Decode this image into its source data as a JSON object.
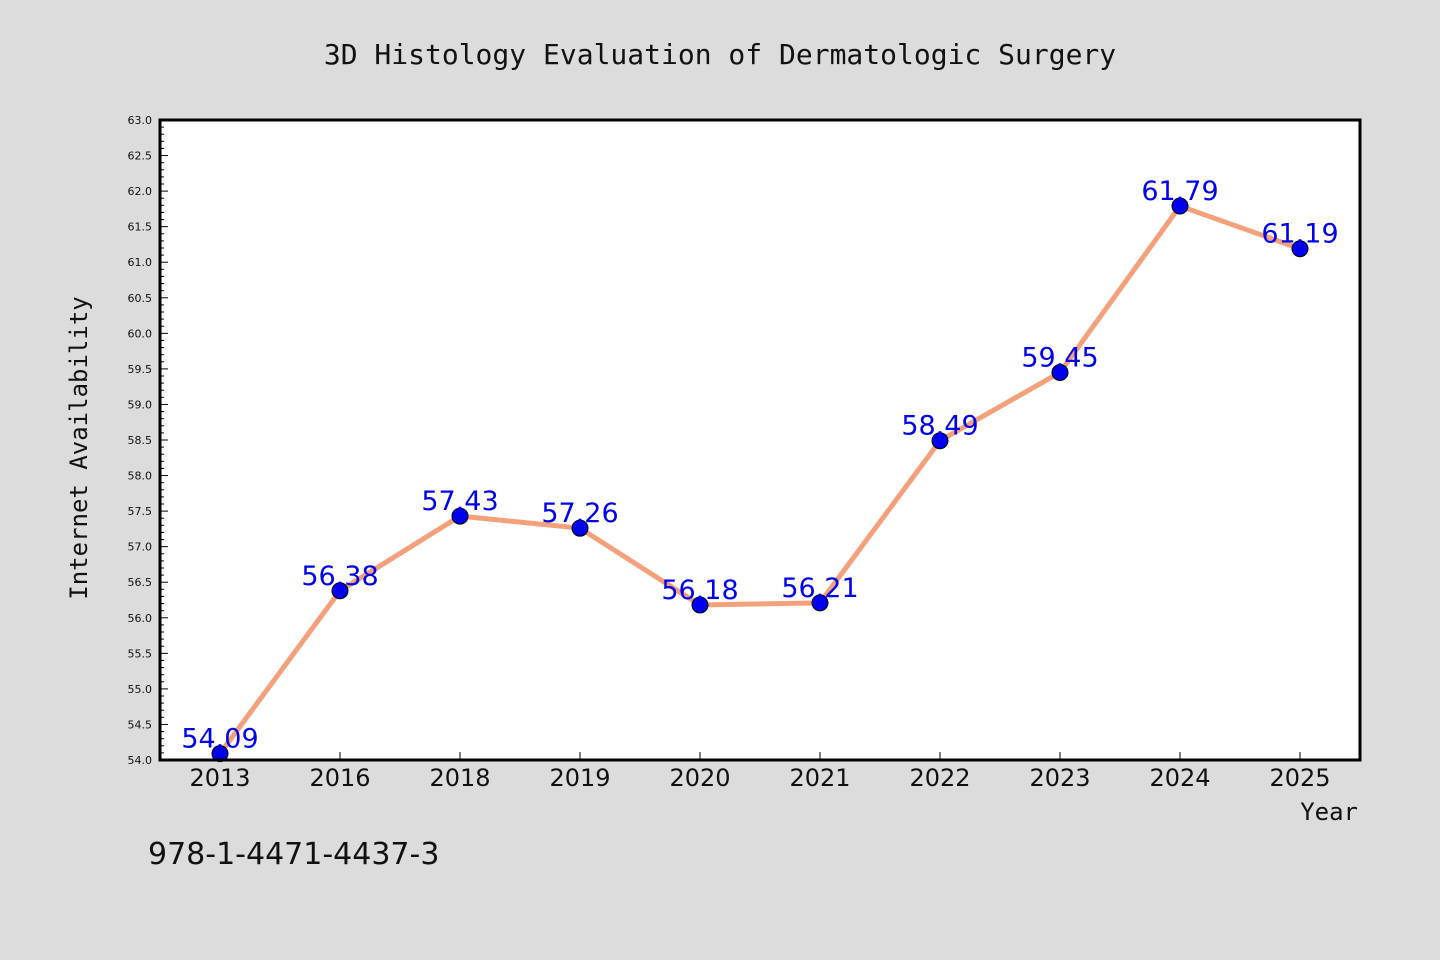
{
  "page": {
    "background": "#dcdcdc",
    "footer_text": "978-1-4471-4437-3"
  },
  "chart_data": {
    "type": "line",
    "title": "3D Histology Evaluation of Dermatologic Surgery",
    "xlabel": "Year",
    "ylabel": "Internet Availability",
    "categories": [
      "2013",
      "2016",
      "2018",
      "2019",
      "2020",
      "2021",
      "2022",
      "2023",
      "2024",
      "2025"
    ],
    "series": [
      {
        "values": [
          54.09,
          56.38,
          57.43,
          57.26,
          56.18,
          56.21,
          58.49,
          59.45,
          61.79,
          61.19
        ],
        "labels": [
          "54.09",
          "56.38",
          "57.43",
          "57.26",
          "56.18",
          "56.21",
          "58.49",
          "59.45",
          "61.79",
          "61.19"
        ],
        "line_color": "#f4a07a",
        "marker_color": "#0000ee",
        "label_color": "#0000ee"
      }
    ],
    "ylim": [
      54.0,
      63.0
    ],
    "yticks": [
      "54.0",
      "54.5",
      "55.0",
      "55.5",
      "56.0",
      "56.5",
      "57.0",
      "57.5",
      "58.0",
      "58.5",
      "59.0",
      "59.5",
      "60.0",
      "60.5",
      "61.0",
      "61.5",
      "62.0",
      "62.5",
      "63.0"
    ],
    "grid": false,
    "legend": "none",
    "plot_background": "#ffffff"
  }
}
